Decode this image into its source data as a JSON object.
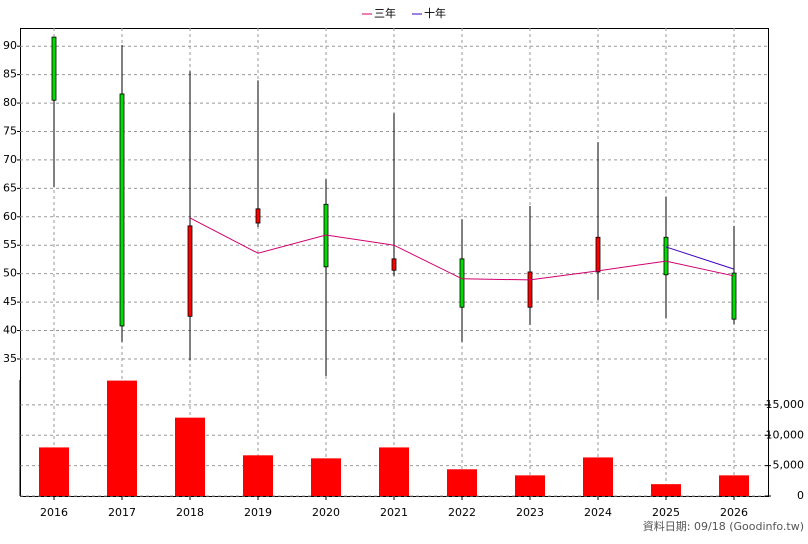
{
  "chart_data": [
    {
      "type": "candlestick",
      "categories": [
        "2016",
        "2017",
        "2018",
        "2019",
        "2020",
        "2021",
        "2022",
        "2023",
        "2024",
        "2025",
        "2026"
      ],
      "open": [
        91.6,
        81.6,
        42.5,
        58.9,
        62.2,
        50.6,
        52.6,
        44.1,
        50.3,
        56.4,
        50.1
      ],
      "high": [
        91.6,
        90.2,
        85.6,
        84.0,
        66.6,
        78.2,
        59.6,
        61.9,
        73.1,
        63.5,
        58.4
      ],
      "low": [
        65.2,
        38.0,
        34.8,
        58.2,
        32.0,
        49.6,
        38.0,
        41.0,
        45.4,
        42.2,
        41.1
      ],
      "close": [
        80.5,
        40.8,
        58.4,
        61.4,
        51.2,
        52.6,
        44.1,
        50.3,
        56.4,
        49.8,
        42.0
      ],
      "up_color": "#ff0000",
      "down_color": "#00dd00",
      "series": [
        {
          "name": "三年",
          "color": "#d0006f",
          "values": [
            null,
            null,
            59.8,
            53.6,
            56.8,
            55.0,
            49.1,
            48.9,
            50.5,
            52.2,
            49.6
          ]
        },
        {
          "name": "十年",
          "color": "#4000c0",
          "values": [
            null,
            null,
            null,
            null,
            null,
            null,
            null,
            null,
            null,
            54.7,
            50.8
          ]
        }
      ],
      "ylim": [
        31.3,
        93.2
      ],
      "yticks": [
        35,
        40,
        45,
        50,
        55,
        60,
        65,
        70,
        75,
        80,
        85,
        90
      ],
      "grid": true
    },
    {
      "type": "bar",
      "values": [
        8000,
        19000,
        12900,
        6700,
        6200,
        8000,
        4400,
        3400,
        6350,
        1950,
        3400
      ],
      "color": "#ff0000",
      "ylim": [
        0,
        19100
      ],
      "yticks": [
        0,
        {
          "value": 5000,
          "label": "5,000"
        },
        {
          "value": 10000,
          "label": "10,000"
        },
        {
          "value": 15000,
          "label": "15,000"
        }
      ],
      "grid": true
    }
  ],
  "footer": "資料日期: 09/18  (Goodinfo.tw)"
}
